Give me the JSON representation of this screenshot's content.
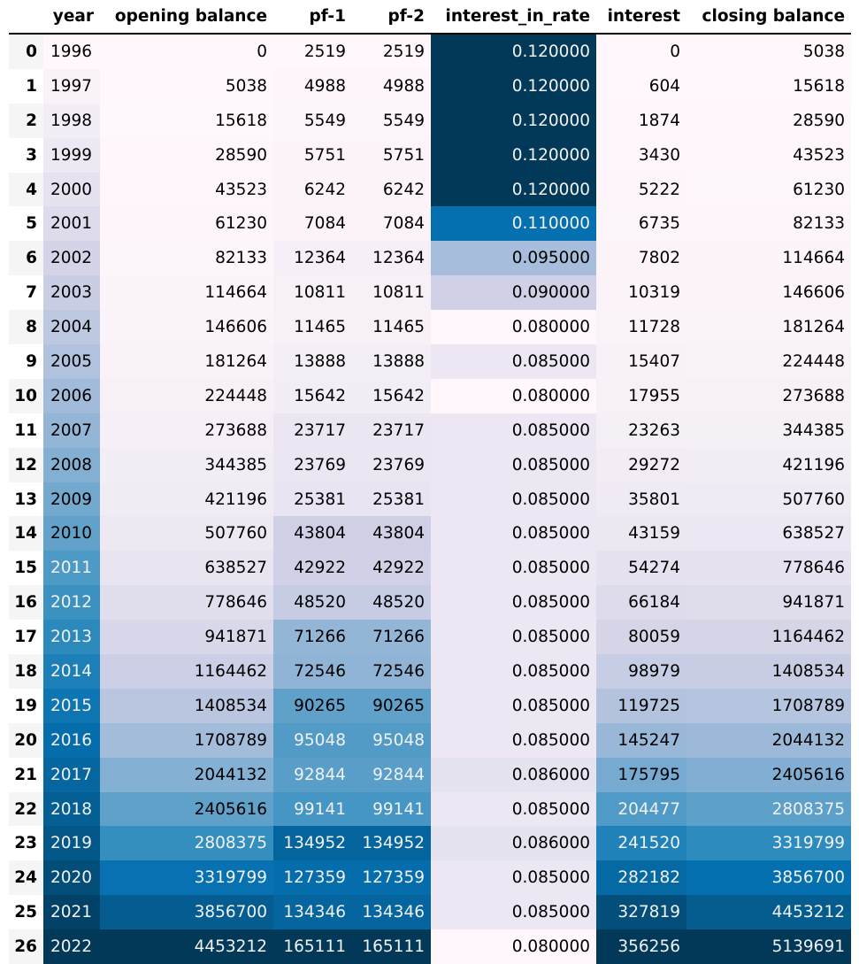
{
  "table": {
    "columns": [
      "year",
      "opening balance",
      "pf-1",
      "pf-2",
      "interest_in_rate",
      "interest",
      "closing balance"
    ],
    "rows": [
      {
        "index": "0",
        "year": "1996",
        "opening": "0",
        "pf1": "2519",
        "pf2": "2519",
        "rate": "0.120000",
        "interest": "0",
        "closing": "5038"
      },
      {
        "index": "1",
        "year": "1997",
        "opening": "5038",
        "pf1": "4988",
        "pf2": "4988",
        "rate": "0.120000",
        "interest": "604",
        "closing": "15618"
      },
      {
        "index": "2",
        "year": "1998",
        "opening": "15618",
        "pf1": "5549",
        "pf2": "5549",
        "rate": "0.120000",
        "interest": "1874",
        "closing": "28590"
      },
      {
        "index": "3",
        "year": "1999",
        "opening": "28590",
        "pf1": "5751",
        "pf2": "5751",
        "rate": "0.120000",
        "interest": "3430",
        "closing": "43523"
      },
      {
        "index": "4",
        "year": "2000",
        "opening": "43523",
        "pf1": "6242",
        "pf2": "6242",
        "rate": "0.120000",
        "interest": "5222",
        "closing": "61230"
      },
      {
        "index": "5",
        "year": "2001",
        "opening": "61230",
        "pf1": "7084",
        "pf2": "7084",
        "rate": "0.110000",
        "interest": "6735",
        "closing": "82133"
      },
      {
        "index": "6",
        "year": "2002",
        "opening": "82133",
        "pf1": "12364",
        "pf2": "12364",
        "rate": "0.095000",
        "interest": "7802",
        "closing": "114664"
      },
      {
        "index": "7",
        "year": "2003",
        "opening": "114664",
        "pf1": "10811",
        "pf2": "10811",
        "rate": "0.090000",
        "interest": "10319",
        "closing": "146606"
      },
      {
        "index": "8",
        "year": "2004",
        "opening": "146606",
        "pf1": "11465",
        "pf2": "11465",
        "rate": "0.080000",
        "interest": "11728",
        "closing": "181264"
      },
      {
        "index": "9",
        "year": "2005",
        "opening": "181264",
        "pf1": "13888",
        "pf2": "13888",
        "rate": "0.085000",
        "interest": "15407",
        "closing": "224448"
      },
      {
        "index": "10",
        "year": "2006",
        "opening": "224448",
        "pf1": "15642",
        "pf2": "15642",
        "rate": "0.080000",
        "interest": "17955",
        "closing": "273688"
      },
      {
        "index": "11",
        "year": "2007",
        "opening": "273688",
        "pf1": "23717",
        "pf2": "23717",
        "rate": "0.085000",
        "interest": "23263",
        "closing": "344385"
      },
      {
        "index": "12",
        "year": "2008",
        "opening": "344385",
        "pf1": "23769",
        "pf2": "23769",
        "rate": "0.085000",
        "interest": "29272",
        "closing": "421196"
      },
      {
        "index": "13",
        "year": "2009",
        "opening": "421196",
        "pf1": "25381",
        "pf2": "25381",
        "rate": "0.085000",
        "interest": "35801",
        "closing": "507760"
      },
      {
        "index": "14",
        "year": "2010",
        "opening": "507760",
        "pf1": "43804",
        "pf2": "43804",
        "rate": "0.085000",
        "interest": "43159",
        "closing": "638527"
      },
      {
        "index": "15",
        "year": "2011",
        "opening": "638527",
        "pf1": "42922",
        "pf2": "42922",
        "rate": "0.085000",
        "interest": "54274",
        "closing": "778646"
      },
      {
        "index": "16",
        "year": "2012",
        "opening": "778646",
        "pf1": "48520",
        "pf2": "48520",
        "rate": "0.085000",
        "interest": "66184",
        "closing": "941871"
      },
      {
        "index": "17",
        "year": "2013",
        "opening": "941871",
        "pf1": "71266",
        "pf2": "71266",
        "rate": "0.085000",
        "interest": "80059",
        "closing": "1164462"
      },
      {
        "index": "18",
        "year": "2014",
        "opening": "1164462",
        "pf1": "72546",
        "pf2": "72546",
        "rate": "0.085000",
        "interest": "98979",
        "closing": "1408534"
      },
      {
        "index": "19",
        "year": "2015",
        "opening": "1408534",
        "pf1": "90265",
        "pf2": "90265",
        "rate": "0.085000",
        "interest": "119725",
        "closing": "1708789"
      },
      {
        "index": "20",
        "year": "2016",
        "opening": "1708789",
        "pf1": "95048",
        "pf2": "95048",
        "rate": "0.085000",
        "interest": "145247",
        "closing": "2044132"
      },
      {
        "index": "21",
        "year": "2017",
        "opening": "2044132",
        "pf1": "92844",
        "pf2": "92844",
        "rate": "0.086000",
        "interest": "175795",
        "closing": "2405616"
      },
      {
        "index": "22",
        "year": "2018",
        "opening": "2405616",
        "pf1": "99141",
        "pf2": "99141",
        "rate": "0.085000",
        "interest": "204477",
        "closing": "2808375"
      },
      {
        "index": "23",
        "year": "2019",
        "opening": "2808375",
        "pf1": "134952",
        "pf2": "134952",
        "rate": "0.086000",
        "interest": "241520",
        "closing": "3319799"
      },
      {
        "index": "24",
        "year": "2020",
        "opening": "3319799",
        "pf1": "127359",
        "pf2": "127359",
        "rate": "0.085000",
        "interest": "282182",
        "closing": "3856700"
      },
      {
        "index": "25",
        "year": "2021",
        "opening": "3856700",
        "pf1": "134346",
        "pf2": "134346",
        "rate": "0.085000",
        "interest": "327819",
        "closing": "4453212"
      },
      {
        "index": "26",
        "year": "2022",
        "opening": "4453212",
        "pf1": "165111",
        "pf2": "165111",
        "rate": "0.080000",
        "interest": "356256",
        "closing": "5139691"
      }
    ]
  },
  "colormap": [
    "#fff7fb",
    "#ece7f2",
    "#d0d1e6",
    "#a6bddb",
    "#74a9cf",
    "#3690c0",
    "#0570b0",
    "#045a8d",
    "#023858"
  ],
  "text_colors": {
    "dark": "#000000",
    "light": "#f1f1f1"
  }
}
